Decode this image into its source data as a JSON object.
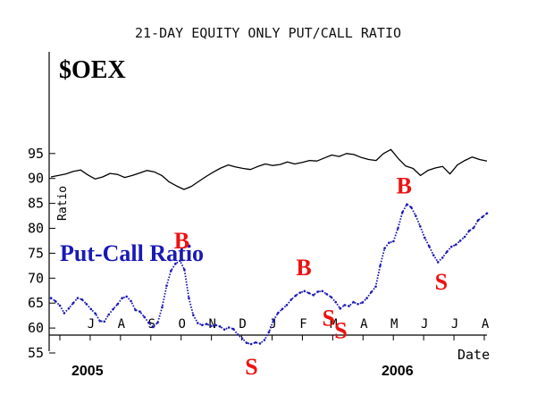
{
  "chart_data": {
    "type": "line",
    "title": "21-DAY EQUITY ONLY PUT/CALL RATIO",
    "ylabel": "Ratio",
    "xlabel": "Date",
    "ylim": [
      55,
      97
    ],
    "y_ticks": [
      "95",
      "90",
      "85",
      "80",
      "75",
      "70",
      "65",
      "60",
      "55"
    ],
    "x_ticks": [
      "J",
      "A",
      "S",
      "O",
      "N",
      "D",
      "J",
      "F",
      "M",
      "A",
      "M",
      "J",
      "J",
      "A"
    ],
    "year_labels": [
      "2005",
      "2006"
    ],
    "grid": false,
    "colors": {
      "oex": "#000000",
      "ratio": "#1a1ab4",
      "signal": "#ee1111",
      "title": "#1a1ab4"
    },
    "series": [
      {
        "name": "$OEX",
        "values": [
          90.3,
          90.6,
          90.9,
          91.4,
          91.7,
          90.7,
          89.9,
          90.3,
          91.0,
          90.8,
          90.2,
          90.6,
          91.1,
          91.6,
          91.3,
          90.6,
          89.3,
          88.5,
          87.8,
          88.4,
          89.4,
          90.4,
          91.3,
          92.1,
          92.7,
          92.3,
          92.0,
          91.8,
          92.4,
          92.9,
          92.6,
          92.8,
          93.3,
          92.9,
          93.2,
          93.6,
          93.5,
          94.1,
          94.7,
          94.4,
          95.0,
          94.8,
          94.2,
          93.8,
          93.6,
          95.0,
          95.8,
          94.0,
          92.5,
          92.0,
          90.6,
          91.6,
          92.1,
          92.4,
          90.9,
          92.7,
          93.6,
          94.3,
          93.8,
          93.5
        ]
      },
      {
        "name": "Put-Call Ratio",
        "values": [
          66.0,
          65.4,
          64.5,
          63.0,
          63.9,
          65.0,
          66.0,
          65.7,
          64.8,
          63.8,
          62.9,
          61.4,
          61.3,
          62.7,
          63.8,
          64.8,
          66.0,
          66.3,
          65.4,
          63.6,
          63.3,
          62.2,
          61.0,
          60.2,
          61.1,
          64.2,
          68.5,
          71.5,
          72.9,
          73.5,
          71.7,
          66.0,
          62.6,
          61.0,
          60.6,
          60.8,
          60.4,
          60.6,
          60.3,
          59.7,
          60.1,
          59.8,
          58.7,
          57.9,
          57.0,
          56.8,
          57.1,
          56.9,
          57.6,
          59.2,
          61.5,
          63.0,
          63.8,
          64.6,
          65.7,
          66.5,
          67.1,
          67.4,
          67.0,
          66.6,
          67.3,
          67.4,
          66.8,
          66.2,
          65.2,
          63.9,
          64.6,
          64.4,
          65.2,
          64.8,
          65.1,
          66.0,
          67.2,
          68.3,
          72.5,
          76.0,
          77.1,
          77.4,
          80.0,
          83.2,
          84.8,
          84.2,
          82.5,
          80.4,
          78.1,
          76.4,
          74.6,
          73.2,
          74.1,
          75.3,
          76.3,
          76.7,
          77.5,
          78.3,
          79.5,
          80.1,
          81.6,
          82.3,
          83.0
        ]
      }
    ],
    "signals": [
      {
        "label": "B",
        "at": 0.3
      },
      {
        "label": "S",
        "at": 0.46
      },
      {
        "label": "B",
        "at": 0.58
      },
      {
        "label": "S",
        "at": 0.637
      },
      {
        "label": "S",
        "at": 0.665
      },
      {
        "label": "B",
        "at": 0.81
      },
      {
        "label": "S",
        "at": 0.895
      }
    ],
    "annotations": [
      "$OEX",
      "Put-Call Ratio"
    ]
  }
}
